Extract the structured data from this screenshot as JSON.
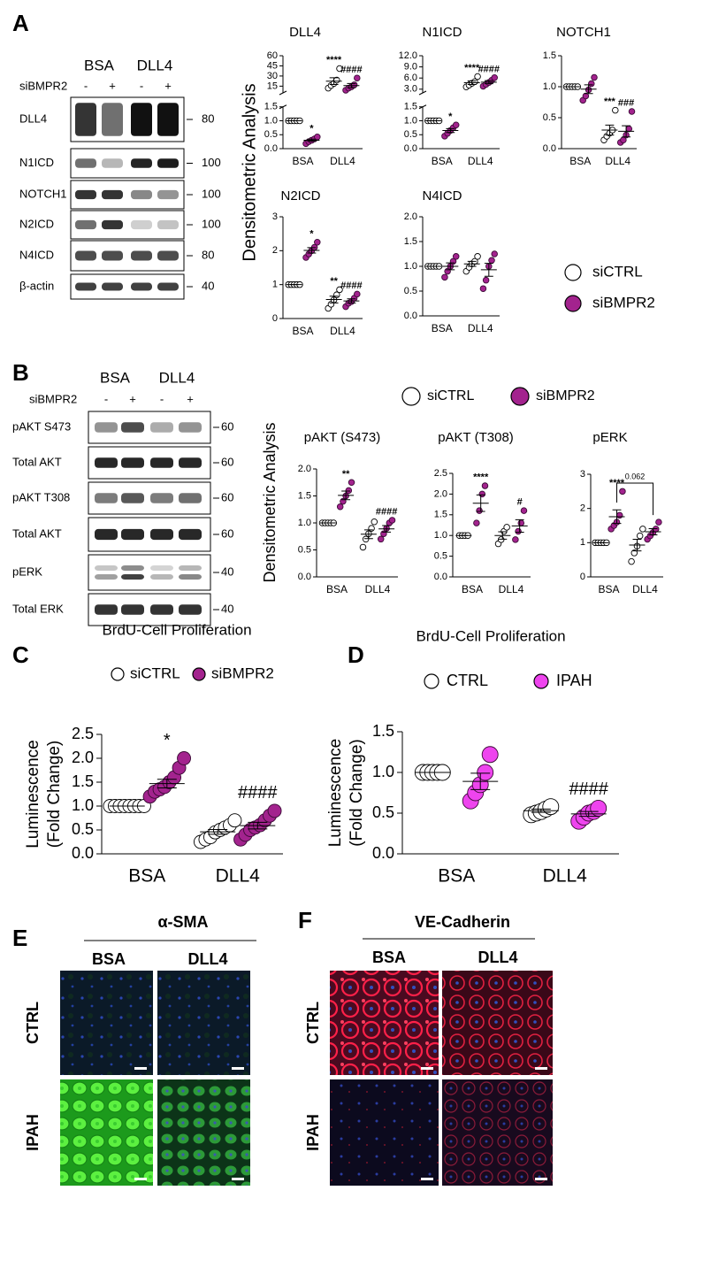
{
  "panel_labels": [
    "A",
    "B",
    "C",
    "D",
    "E",
    "F"
  ],
  "y_axis_label": "Densitometric Analysis",
  "blots": [
    {
      "header": [
        "BSA",
        "DLL4"
      ],
      "treatment": "siBMPR2",
      "signs": [
        "-",
        "+",
        "-",
        "+"
      ],
      "rows": [
        {
          "label": "DLL4",
          "mw": 80
        },
        {
          "label": "N1ICD",
          "mw": 100
        },
        {
          "label": "NOTCH1",
          "mw": 100
        },
        {
          "label": "N2ICD",
          "mw": 100
        },
        {
          "label": "N4ICD",
          "mw": 80
        },
        {
          "label": "β-actin",
          "mw": 40
        }
      ]
    },
    {
      "header": [
        "BSA",
        "DLL4"
      ],
      "treatment": "siBMPR2",
      "signs": [
        "-",
        "+",
        "-",
        "+"
      ],
      "rows": [
        {
          "label": "pAKT S473",
          "mw": 60
        },
        {
          "label": "Total AKT",
          "mw": 60
        },
        {
          "label": "pAKT T308",
          "mw": 60
        },
        {
          "label": "Total AKT",
          "mw": 60
        },
        {
          "label": "pERK",
          "mw": 40
        },
        {
          "label": "Total ERK",
          "mw": 40
        }
      ]
    }
  ],
  "images": [
    {
      "title": "α-SMA",
      "columns": [
        "BSA",
        "DLL4"
      ],
      "rows": [
        "CTRL",
        "IPAH"
      ]
    },
    {
      "title": "VE-Cadherin",
      "columns": [
        "BSA",
        "DLL4"
      ],
      "rows": [
        "CTRL",
        "IPAH"
      ]
    }
  ],
  "chart_data": [
    {
      "type": "dot",
      "title": "DLL4",
      "categories": [
        "BSA",
        "DLL4"
      ],
      "ylim": [
        0,
        1.5
      ],
      "yticks": [
        {
          "value": 0,
          "label": "0.0"
        },
        0.5,
        {
          "value": 1,
          "label": "1.0"
        },
        1.5
      ],
      "ylim_upper": [
        5,
        60
      ],
      "yticks_upper": [
        15,
        30,
        45,
        60
      ],
      "series": [
        {
          "name": "siCTRL",
          "color": "#ffffff",
          "points": [
            [
              1,
              1,
              1,
              1,
              1
            ],
            [
              12,
              16,
              19,
              24,
              41
            ]
          ],
          "means": [
            1,
            22.4
          ],
          "sems": [
            0,
            5.0
          ],
          "annotations": [
            null,
            "****"
          ]
        },
        {
          "name": "siBMPR2",
          "color": "#a3238e",
          "points": [
            [
              0.18,
              0.25,
              0.3,
              0.35,
              0.42
            ],
            [
              9,
              12,
              14,
              17,
              27
            ]
          ],
          "means": [
            0.3,
            15.8
          ],
          "sems": [
            0.04,
            3.1
          ],
          "annotations": [
            "*",
            "####"
          ]
        }
      ]
    },
    {
      "type": "dot",
      "title": "N1ICD",
      "categories": [
        "BSA",
        "DLL4"
      ],
      "ylim": [
        0,
        1.5
      ],
      "yticks": [
        {
          "value": 0,
          "label": "0.0"
        },
        0.5,
        {
          "value": 1,
          "label": "1.0"
        },
        1.5
      ],
      "ylim_upper": [
        2,
        12
      ],
      "yticks_upper": [
        {
          "value": 3,
          "label": "3.0"
        },
        {
          "value": 6,
          "label": "6.0"
        },
        {
          "value": 9,
          "label": "9.0"
        },
        {
          "value": 12,
          "label": "12.0"
        }
      ],
      "series": [
        {
          "name": "siCTRL",
          "color": "#ffffff",
          "points": [
            [
              1,
              1,
              1,
              1,
              1
            ],
            [
              3.6,
              4.1,
              4.6,
              5.0,
              6.4
            ]
          ],
          "means": [
            1,
            4.74
          ],
          "sems": [
            0,
            0.48
          ],
          "annotations": [
            null,
            "****"
          ]
        },
        {
          "name": "siBMPR2",
          "color": "#a3238e",
          "points": [
            [
              0.45,
              0.55,
              0.65,
              0.75,
              0.85
            ],
            [
              3.8,
              4.3,
              4.8,
              5.4,
              6.1
            ]
          ],
          "means": [
            0.65,
            4.88
          ],
          "sems": [
            0.07,
            0.41
          ],
          "annotations": [
            "*",
            "####"
          ]
        }
      ]
    },
    {
      "type": "dot",
      "title": "NOTCH1",
      "categories": [
        "BSA",
        "DLL4"
      ],
      "ylim": [
        0,
        1.5
      ],
      "yticks": [
        {
          "value": 0,
          "label": "0.0"
        },
        0.5,
        {
          "value": 1,
          "label": "1.0"
        },
        1.5
      ],
      "series": [
        {
          "name": "siCTRL",
          "color": "#ffffff",
          "points": [
            [
              1,
              1,
              1,
              1,
              1
            ],
            [
              0.14,
              0.2,
              0.25,
              0.3,
              0.62
            ]
          ],
          "means": [
            1,
            0.3
          ],
          "sems": [
            0,
            0.08
          ],
          "annotations": [
            null,
            "***"
          ]
        },
        {
          "name": "siBMPR2",
          "color": "#a3238e",
          "points": [
            [
              0.78,
              0.85,
              0.95,
              1.05,
              1.15
            ],
            [
              0.1,
              0.14,
              0.22,
              0.32,
              0.6
            ]
          ],
          "means": [
            0.96,
            0.28
          ],
          "sems": [
            0.07,
            0.09
          ],
          "annotations": [
            null,
            "###"
          ]
        }
      ]
    },
    {
      "type": "dot",
      "title": "N2ICD",
      "categories": [
        "BSA",
        "DLL4"
      ],
      "ylim": [
        0,
        3
      ],
      "yticks": [
        0,
        1,
        2,
        3
      ],
      "series": [
        {
          "name": "siCTRL",
          "color": "#ffffff",
          "points": [
            [
              1,
              1,
              1,
              1,
              1
            ],
            [
              0.3,
              0.42,
              0.55,
              0.7,
              0.85
            ]
          ],
          "means": [
            1,
            0.56
          ],
          "sems": [
            0,
            0.1
          ],
          "annotations": [
            null,
            "**"
          ]
        },
        {
          "name": "siBMPR2",
          "color": "#a3238e",
          "points": [
            [
              1.8,
              1.9,
              2.0,
              2.1,
              2.25
            ],
            [
              0.35,
              0.45,
              0.5,
              0.6,
              0.72
            ]
          ],
          "means": [
            2.01,
            0.52
          ],
          "sems": [
            0.08,
            0.06
          ],
          "annotations": [
            "*",
            "####"
          ]
        }
      ]
    },
    {
      "type": "dot",
      "title": "N4ICD",
      "categories": [
        "BSA",
        "DLL4"
      ],
      "ylim": [
        0,
        2
      ],
      "yticks": [
        {
          "value": 0,
          "label": "0.0"
        },
        0.5,
        {
          "value": 1,
          "label": "1.0"
        },
        1.5,
        {
          "value": 2,
          "label": "2.0"
        }
      ],
      "series": [
        {
          "name": "siCTRL",
          "color": "#ffffff",
          "points": [
            [
              1,
              1,
              1,
              1,
              1
            ],
            [
              0.9,
              0.98,
              1.05,
              1.1,
              1.2
            ]
          ],
          "means": [
            1,
            1.05
          ],
          "sems": [
            0,
            0.05
          ],
          "annotations": [
            null,
            null
          ]
        },
        {
          "name": "siBMPR2",
          "color": "#a3238e",
          "points": [
            [
              0.78,
              0.9,
              1.0,
              1.1,
              1.2
            ],
            [
              0.55,
              0.72,
              1.0,
              1.12,
              1.25
            ]
          ],
          "means": [
            1.0,
            0.93
          ],
          "sems": [
            0.07,
            0.13
          ],
          "annotations": [
            null,
            null
          ]
        }
      ]
    },
    {
      "type": "dot",
      "title": "pAKT (S473)",
      "categories": [
        "BSA",
        "DLL4"
      ],
      "ylim": [
        0,
        2
      ],
      "yticks": [
        {
          "value": 0,
          "label": "0.0"
        },
        0.5,
        {
          "value": 1,
          "label": "1.0"
        },
        1.5,
        {
          "value": 2,
          "label": "2.0"
        }
      ],
      "series": [
        {
          "name": "siCTRL",
          "color": "#ffffff",
          "points": [
            [
              1,
              1,
              1,
              1,
              1
            ],
            [
              0.55,
              0.7,
              0.8,
              0.9,
              1.02
            ]
          ],
          "means": [
            1,
            0.79
          ],
          "sems": [
            0,
            0.08
          ],
          "annotations": [
            null,
            null
          ]
        },
        {
          "name": "siBMPR2",
          "color": "#a3238e",
          "points": [
            [
              1.3,
              1.4,
              1.5,
              1.6,
              1.75
            ],
            [
              0.7,
              0.8,
              0.9,
              1.0,
              1.05
            ]
          ],
          "means": [
            1.51,
            0.89
          ],
          "sems": [
            0.08,
            0.06
          ],
          "annotations": [
            "**",
            "####"
          ]
        }
      ]
    },
    {
      "type": "dot",
      "title": "pAKT (T308)",
      "categories": [
        "BSA",
        "DLL4"
      ],
      "ylim": [
        0,
        2.5
      ],
      "yticks": [
        {
          "value": 0,
          "label": "0.0"
        },
        0.5,
        {
          "value": 1,
          "label": "1.0"
        },
        1.5,
        {
          "value": 2,
          "label": "2.0"
        },
        2.5
      ],
      "series": [
        {
          "name": "siCTRL",
          "color": "#ffffff",
          "points": [
            [
              1,
              1,
              1,
              1
            ],
            [
              0.8,
              0.9,
              1.1,
              1.2
            ]
          ],
          "means": [
            1,
            1.0
          ],
          "sems": [
            0,
            0.09
          ],
          "annotations": [
            null,
            null
          ]
        },
        {
          "name": "siBMPR2",
          "color": "#a3238e",
          "points": [
            [
              1.3,
              1.6,
              2.0,
              2.2
            ],
            [
              0.9,
              1.1,
              1.3,
              1.6
            ]
          ],
          "means": [
            1.78,
            1.23
          ],
          "sems": [
            0.2,
            0.15
          ],
          "annotations": [
            "****",
            "#"
          ]
        }
      ]
    },
    {
      "type": "dot",
      "title": "pERK",
      "categories": [
        "BSA",
        "DLL4"
      ],
      "ylim": [
        0,
        3
      ],
      "yticks": [
        0,
        1,
        2,
        3
      ],
      "comparison": "0.062",
      "series": [
        {
          "name": "siCTRL",
          "color": "#ffffff",
          "points": [
            [
              1,
              1,
              1,
              1,
              1
            ],
            [
              0.45,
              0.7,
              0.9,
              1.2,
              1.4
            ]
          ],
          "means": [
            1,
            0.93
          ],
          "sems": [
            0,
            0.17
          ],
          "annotations": [
            null,
            null
          ]
        },
        {
          "name": "siBMPR2",
          "color": "#a3238e",
          "points": [
            [
              1.4,
              1.5,
              1.6,
              1.8,
              2.5
            ],
            [
              1.1,
              1.2,
              1.3,
              1.4,
              1.6
            ]
          ],
          "means": [
            1.76,
            1.32
          ],
          "sems": [
            0.2,
            0.09
          ],
          "annotations": [
            "****",
            null
          ]
        }
      ]
    },
    {
      "type": "dot",
      "title": "BrdU-Cell Proliferation",
      "ylabel": [
        "Luminescence",
        "(Fold Change)"
      ],
      "categories": [
        "BSA",
        "DLL4"
      ],
      "ylim": [
        0,
        2.5
      ],
      "yticks": [
        {
          "value": 0,
          "label": "0.0"
        },
        0.5,
        {
          "value": 1,
          "label": "1.0"
        },
        1.5,
        {
          "value": 2,
          "label": "2.0"
        },
        2.5
      ],
      "series": [
        {
          "name": "siCTRL",
          "color": "#ffffff",
          "points": [
            [
              1,
              1,
              1,
              1,
              1,
              1,
              1,
              1
            ],
            [
              0.25,
              0.3,
              0.35,
              0.45,
              0.5,
              0.55,
              0.6,
              0.7
            ]
          ],
          "means": [
            1,
            0.46
          ],
          "sems": [
            0,
            0.05
          ],
          "annotations": [
            null,
            null
          ]
        },
        {
          "name": "siBMPR2",
          "color": "#a3238e",
          "points": [
            [
              1.2,
              1.3,
              1.35,
              1.4,
              1.5,
              1.6,
              1.8,
              2.0
            ],
            [
              0.3,
              0.4,
              0.5,
              0.55,
              0.6,
              0.7,
              0.8,
              0.9
            ]
          ],
          "means": [
            1.47,
            0.59
          ],
          "sems": [
            0.09,
            0.07
          ],
          "annotations": [
            "*",
            "####"
          ]
        }
      ]
    },
    {
      "type": "dot",
      "title": "BrdU-Cell Proliferation",
      "ylabel": [
        "Luminescence",
        "(Fold Change)"
      ],
      "categories": [
        "BSA",
        "DLL4"
      ],
      "ylim": [
        0,
        1.5
      ],
      "yticks": [
        {
          "value": 0,
          "label": "0.0"
        },
        0.5,
        {
          "value": 1,
          "label": "1.0"
        },
        1.5
      ],
      "series": [
        {
          "name": "CTRL",
          "color": "#ffffff",
          "points": [
            [
              1,
              1,
              1,
              1,
              1
            ],
            [
              0.48,
              0.5,
              0.52,
              0.55,
              0.58
            ]
          ],
          "means": [
            1,
            0.53
          ],
          "sems": [
            0,
            0.02
          ],
          "annotations": [
            null,
            null
          ]
        },
        {
          "name": "IPAH",
          "color": "#ee44ee",
          "points": [
            [
              0.65,
              0.75,
              0.85,
              1.0,
              1.22
            ],
            [
              0.4,
              0.45,
              0.5,
              0.52,
              0.56
            ]
          ],
          "means": [
            0.89,
            0.49
          ],
          "sems": [
            0.1,
            0.03
          ],
          "annotations": [
            null,
            "####"
          ]
        }
      ]
    }
  ]
}
